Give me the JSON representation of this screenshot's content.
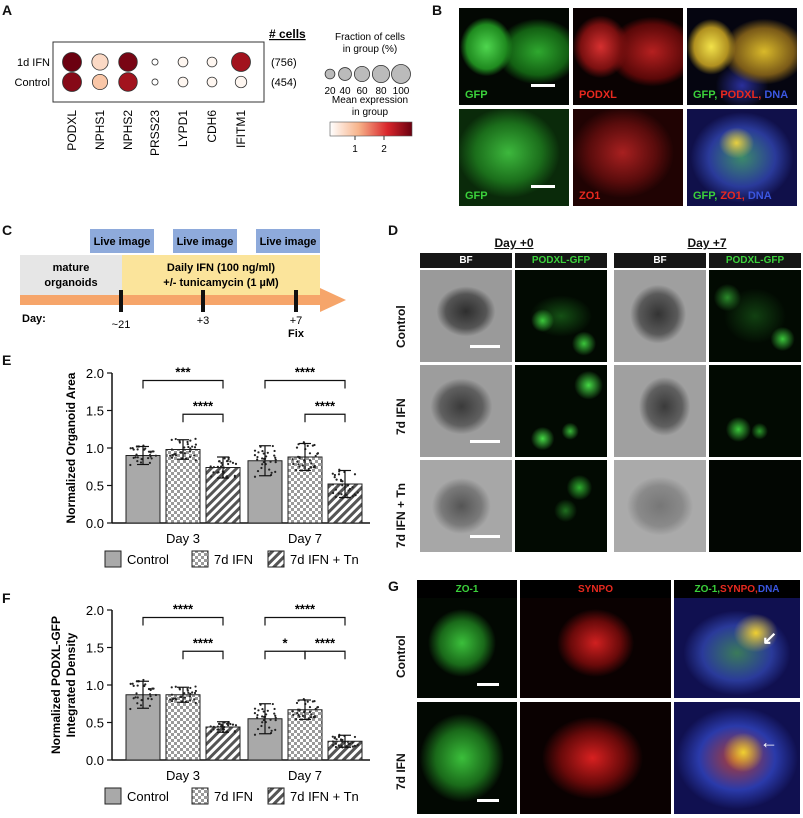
{
  "panel_labels": {
    "A": "A",
    "B": "B",
    "C": "C",
    "D": "D",
    "E": "E",
    "F": "F",
    "G": "G"
  },
  "panelA": {
    "cells_header": "# cells",
    "rows": [
      {
        "label": "1d IFN",
        "cells": "(756)",
        "dots": [
          {
            "frac": 100,
            "expr": 2.4
          },
          {
            "frac": 70,
            "expr": 0.4
          },
          {
            "frac": 95,
            "expr": 2.3
          },
          {
            "frac": 5,
            "expr": 0
          },
          {
            "frac": 20,
            "expr": 0.1
          },
          {
            "frac": 20,
            "expr": 0.1
          },
          {
            "frac": 100,
            "expr": 2.0
          }
        ]
      },
      {
        "label": "Control",
        "cells": "(454)",
        "dots": [
          {
            "frac": 100,
            "expr": 2.2
          },
          {
            "frac": 60,
            "expr": 0.6
          },
          {
            "frac": 95,
            "expr": 2.0
          },
          {
            "frac": 5,
            "expr": 0
          },
          {
            "frac": 20,
            "expr": 0.1
          },
          {
            "frac": 20,
            "expr": 0.1
          },
          {
            "frac": 30,
            "expr": 0.1
          }
        ]
      }
    ],
    "genes": [
      "PODXL",
      "NPHS1",
      "NPHS2",
      "PRSS23",
      "LYPD1",
      "CDH6",
      "IFITM1"
    ],
    "size_legend_title_1": "Fraction of cells",
    "size_legend_title_2": "in group (%)",
    "size_legend_values": [
      "20",
      "40",
      "60",
      "80",
      "100"
    ],
    "color_legend_title_1": "Mean expression",
    "color_legend_title_2": "in group",
    "color_ticks": [
      "1",
      "2"
    ]
  },
  "panelB": {
    "row1": [
      "GFP",
      "PODXL"
    ],
    "row1_merge": [
      "GFP, ",
      "PODXL, ",
      "DNA"
    ],
    "row2": [
      "GFP",
      "ZO1"
    ],
    "row2_merge": [
      "GFP, ",
      "ZO1, ",
      "DNA"
    ]
  },
  "panelC": {
    "live_image": "Live image",
    "mature_1": "mature",
    "mature_2": "organoids",
    "treat_1": "Daily IFN (100 ng/ml)",
    "treat_2": "+/- tunicamycin (1 µM)",
    "day_label": "Day:",
    "days": [
      "~21",
      "+3",
      "+7"
    ],
    "fix": "Fix"
  },
  "panelD": {
    "day0": "Day +0",
    "day7": "Day +7",
    "bf": "BF",
    "gfp": "PODXL-GFP",
    "rows": [
      "Control",
      "7d IFN",
      "7d IFN + Tn"
    ]
  },
  "panelG": {
    "col1": "ZO-1",
    "col2": "SYNPO",
    "col3": [
      "ZO-1, ",
      "SYNPO, ",
      "DNA"
    ],
    "rows": [
      "Control",
      "7d IFN"
    ]
  },
  "colors": {
    "control": "#a9a9a9",
    "gfp": "#3bd13b",
    "red": "#e8291f",
    "blue": "#3a56e0",
    "timeline": "#f6a56a",
    "treat": "#fbe49b",
    "live": "#8eaadb",
    "mature": "#e6e6e6"
  },
  "chart_data": [
    {
      "type": "bar",
      "panel": "E",
      "ylabel": "Normalized Organoid Area",
      "ylim": [
        0,
        2.0
      ],
      "yticks": [
        "0.0",
        "0.5",
        "1.0",
        "1.5",
        "2.0"
      ],
      "categories": [
        "Day 3",
        "Day 7"
      ],
      "series": [
        {
          "name": "Control",
          "values": [
            0.9,
            0.83
          ],
          "sd": [
            0.12,
            0.2
          ]
        },
        {
          "name": "7d IFN",
          "values": [
            0.98,
            0.88
          ],
          "sd": [
            0.13,
            0.18
          ]
        },
        {
          "name": "7d IFN + Tn",
          "values": [
            0.74,
            0.52
          ],
          "sd": [
            0.14,
            0.18
          ]
        }
      ],
      "significance": [
        {
          "group": 0,
          "from": 0,
          "to": 2,
          "label": "***"
        },
        {
          "group": 0,
          "from": 1,
          "to": 2,
          "label": "****"
        },
        {
          "group": 1,
          "from": 0,
          "to": 2,
          "label": "****"
        },
        {
          "group": 1,
          "from": 1,
          "to": 2,
          "label": "****"
        }
      ]
    },
    {
      "type": "bar",
      "panel": "F",
      "ylabel": "Normalized PODXL-GFP",
      "ylabel2": "Integrated Density",
      "ylim": [
        0,
        2.0
      ],
      "yticks": [
        "0.0",
        "0.5",
        "1.0",
        "1.5",
        "2.0"
      ],
      "categories": [
        "Day 3",
        "Day 7"
      ],
      "series": [
        {
          "name": "Control",
          "values": [
            0.87,
            0.55
          ],
          "sd": [
            0.18,
            0.2
          ]
        },
        {
          "name": "7d IFN",
          "values": [
            0.87,
            0.67
          ],
          "sd": [
            0.1,
            0.13
          ]
        },
        {
          "name": "7d IFN + Tn",
          "values": [
            0.44,
            0.25
          ],
          "sd": [
            0.07,
            0.08
          ]
        }
      ],
      "significance": [
        {
          "group": 0,
          "from": 0,
          "to": 2,
          "label": "****"
        },
        {
          "group": 0,
          "from": 1,
          "to": 2,
          "label": "****"
        },
        {
          "group": 1,
          "from": 0,
          "to": 2,
          "label": "****"
        },
        {
          "group": 1,
          "from": 0,
          "to": 1,
          "label": "*"
        },
        {
          "group": 1,
          "from": 1,
          "to": 2,
          "label": "****"
        }
      ]
    }
  ]
}
